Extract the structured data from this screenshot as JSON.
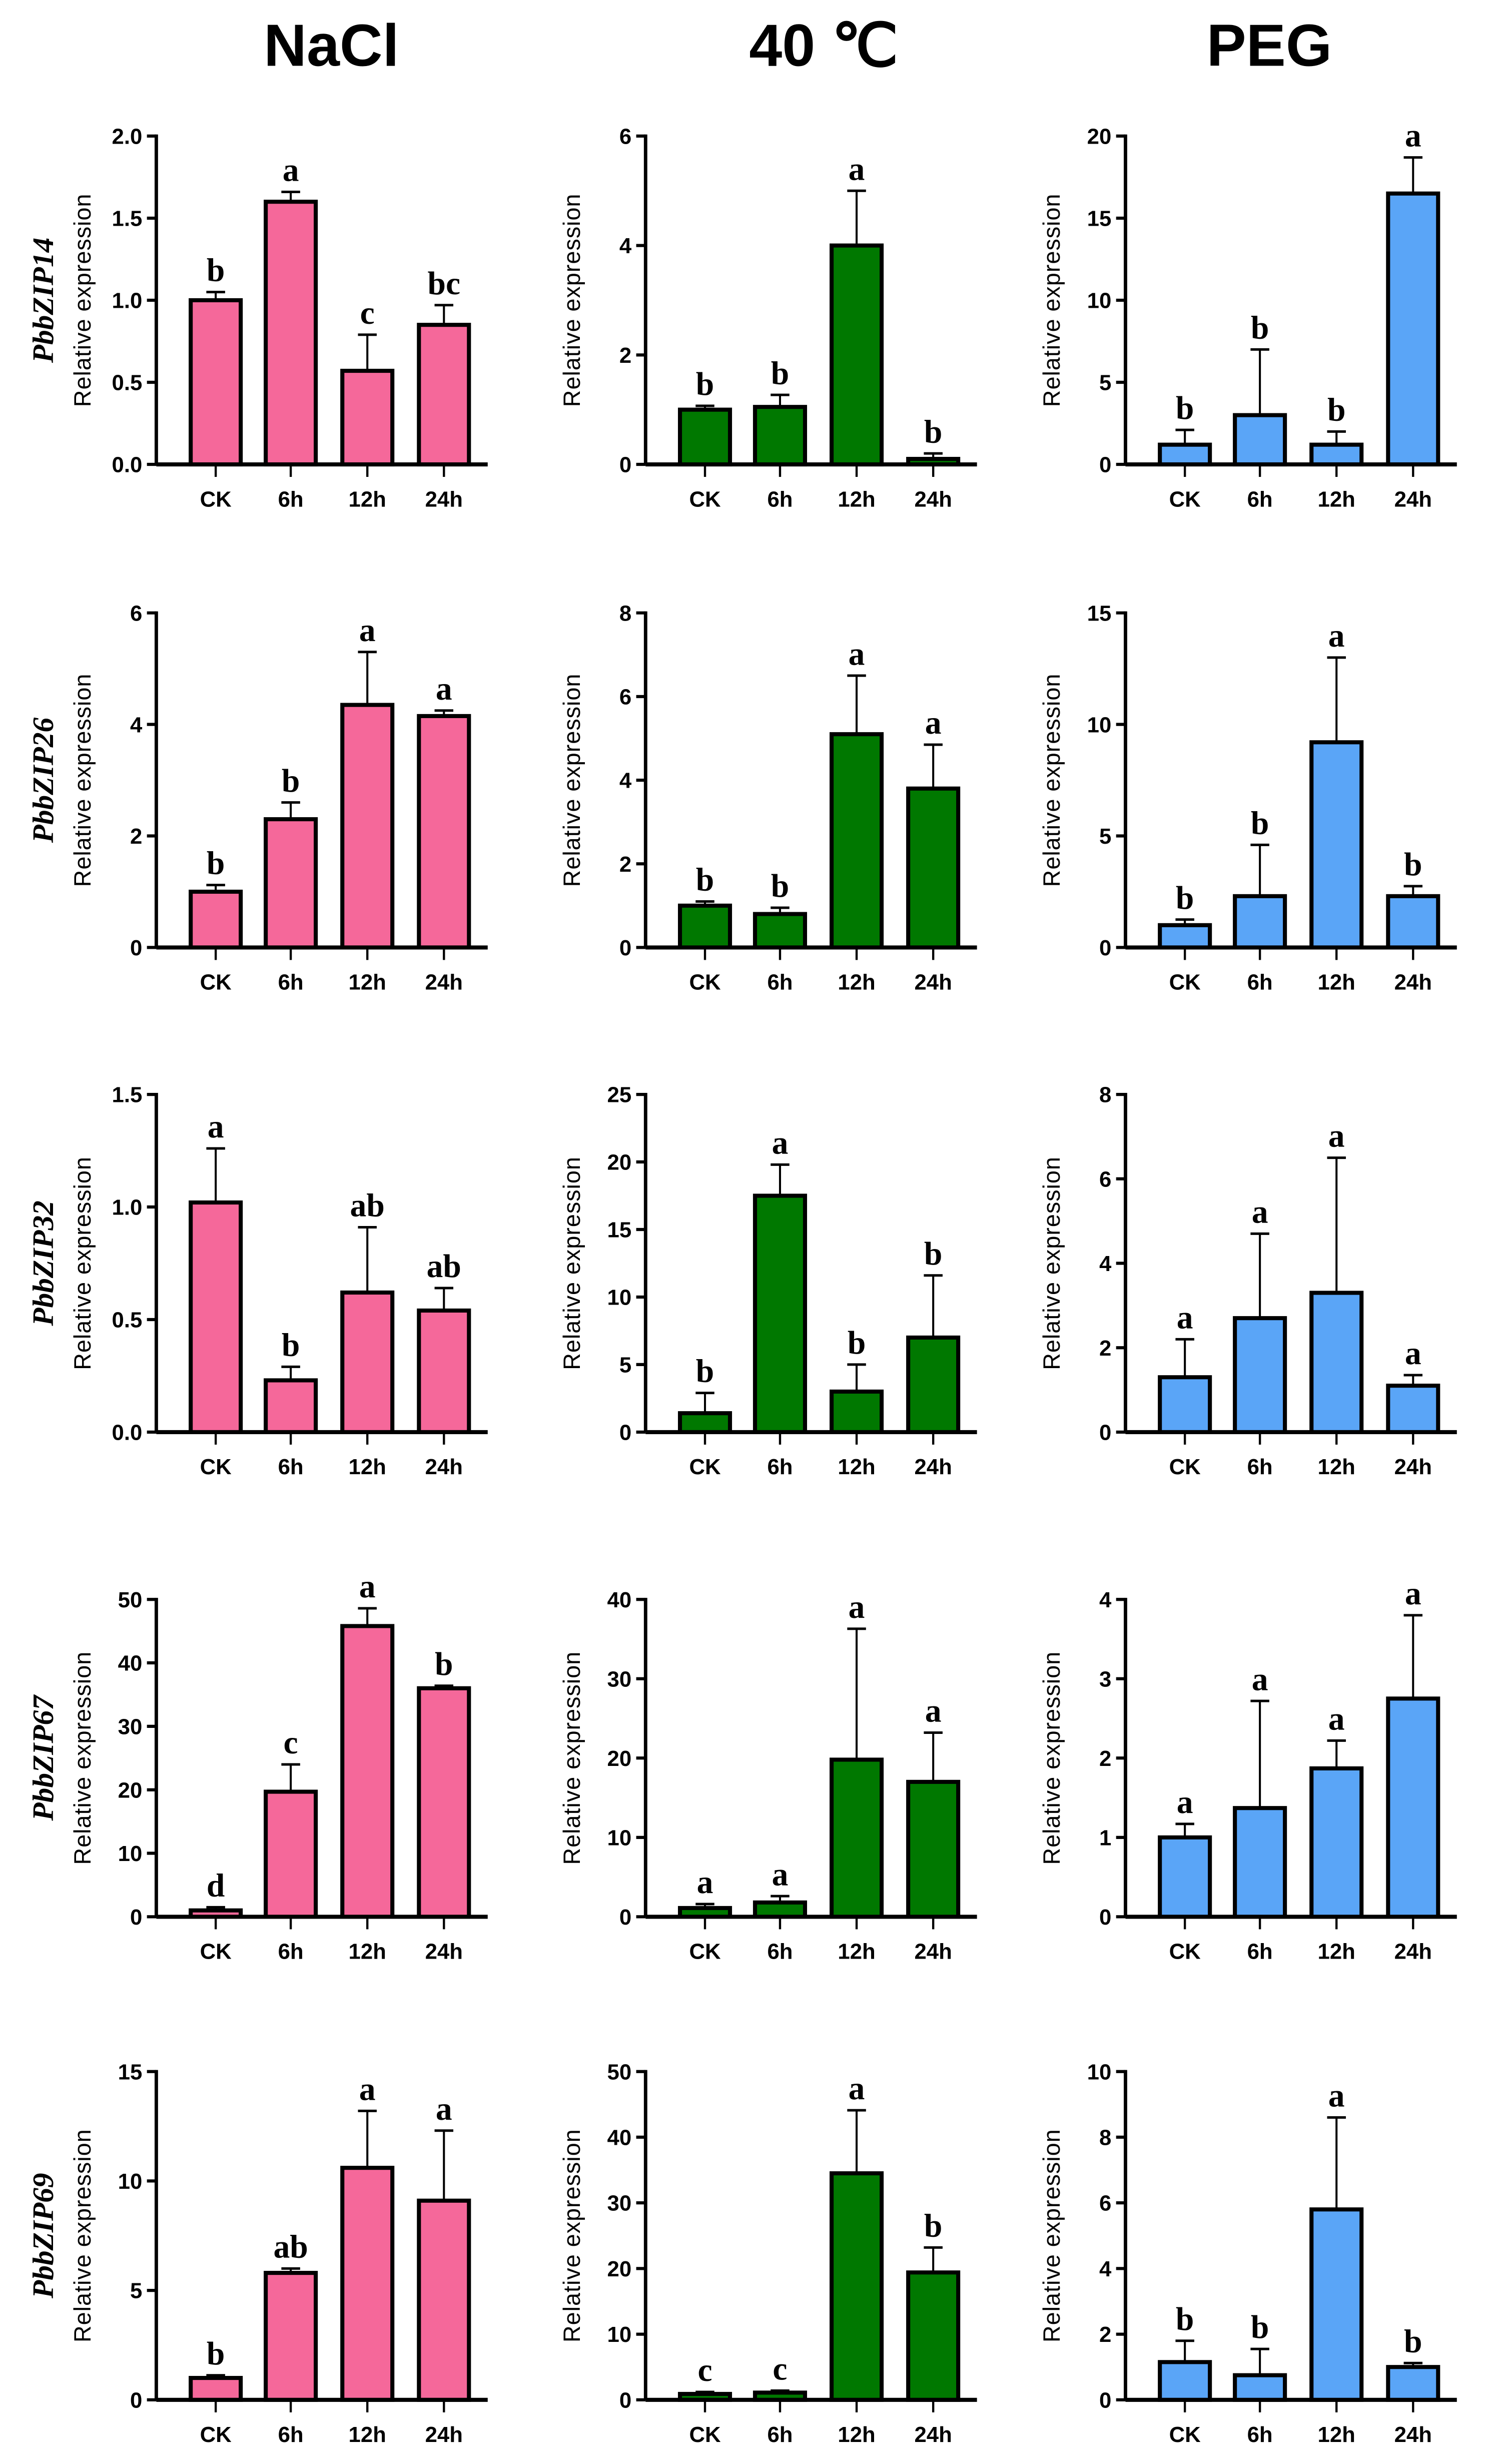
{
  "chart_data": {
    "type": "bar",
    "columns": [
      "NaCl",
      "40 ℃",
      "PEG"
    ],
    "rows": [
      "PbbZIP14",
      "PbbZIP26",
      "PbbZIP32",
      "PbbZIP67",
      "PbbZIP69"
    ],
    "categories": [
      "CK",
      "6h",
      "12h",
      "24h"
    ],
    "ylabel": "Relative expression",
    "colors": {
      "NaCl": "#f5689a",
      "40 ℃": "#007800",
      "PEG": "#5aa5f7"
    },
    "panels": [
      {
        "gene": "PbbZIP14",
        "condition": "NaCl",
        "ylim": [
          0,
          2
        ],
        "yticks": [
          "0.0",
          "0.5",
          "1.0",
          "1.5",
          "2.0"
        ],
        "values": [
          1.0,
          1.6,
          0.57,
          0.85
        ],
        "errors": [
          0.05,
          0.06,
          0.22,
          0.12
        ],
        "letters": [
          "b",
          "a",
          "c",
          "bc"
        ]
      },
      {
        "gene": "PbbZIP14",
        "condition": "40 ℃",
        "ylim": [
          0,
          6
        ],
        "yticks": [
          "0",
          "2",
          "4",
          "6"
        ],
        "values": [
          1.0,
          1.05,
          4.0,
          0.1
        ],
        "errors": [
          0.07,
          0.22,
          1.0,
          0.1
        ],
        "letters": [
          "b",
          "b",
          "a",
          "b"
        ]
      },
      {
        "gene": "PbbZIP14",
        "condition": "PEG",
        "ylim": [
          0,
          20
        ],
        "yticks": [
          "0",
          "5",
          "10",
          "15",
          "20"
        ],
        "values": [
          1.2,
          3.0,
          1.2,
          16.5
        ],
        "errors": [
          0.9,
          4.0,
          0.8,
          2.2
        ],
        "letters": [
          "b",
          "b",
          "b",
          "a"
        ]
      },
      {
        "gene": "PbbZIP26",
        "condition": "NaCl",
        "ylim": [
          0,
          6
        ],
        "yticks": [
          "0",
          "2",
          "4",
          "6"
        ],
        "values": [
          1.0,
          2.3,
          4.35,
          4.15
        ],
        "errors": [
          0.12,
          0.3,
          0.95,
          0.1
        ],
        "letters": [
          "b",
          "b",
          "a",
          "a"
        ]
      },
      {
        "gene": "PbbZIP26",
        "condition": "40 ℃",
        "ylim": [
          0,
          8
        ],
        "yticks": [
          "0",
          "2",
          "4",
          "6",
          "8"
        ],
        "values": [
          1.0,
          0.8,
          5.1,
          3.8
        ],
        "errors": [
          0.1,
          0.15,
          1.4,
          1.05
        ],
        "letters": [
          "b",
          "b",
          "a",
          "a"
        ]
      },
      {
        "gene": "PbbZIP26",
        "condition": "PEG",
        "ylim": [
          0,
          15
        ],
        "yticks": [
          "0",
          "5",
          "10",
          "15"
        ],
        "values": [
          1.0,
          2.3,
          9.2,
          2.3
        ],
        "errors": [
          0.25,
          2.3,
          3.8,
          0.45
        ],
        "letters": [
          "b",
          "b",
          "a",
          "b"
        ]
      },
      {
        "gene": "PbbZIP32",
        "condition": "NaCl",
        "ylim": [
          0,
          1.5
        ],
        "yticks": [
          "0.0",
          "0.5",
          "1.0",
          "1.5"
        ],
        "values": [
          1.02,
          0.23,
          0.62,
          0.54
        ],
        "errors": [
          0.24,
          0.06,
          0.29,
          0.1
        ],
        "letters": [
          "a",
          "b",
          "ab",
          "ab"
        ]
      },
      {
        "gene": "PbbZIP32",
        "condition": "40 ℃",
        "ylim": [
          0,
          25
        ],
        "yticks": [
          "0",
          "5",
          "10",
          "15",
          "20",
          "25"
        ],
        "values": [
          1.4,
          17.5,
          3.0,
          7.0
        ],
        "errors": [
          1.5,
          2.3,
          2.0,
          4.6
        ],
        "letters": [
          "b",
          "a",
          "b",
          "b"
        ]
      },
      {
        "gene": "PbbZIP32",
        "condition": "PEG",
        "ylim": [
          0,
          8
        ],
        "yticks": [
          "0",
          "2",
          "4",
          "6",
          "8"
        ],
        "values": [
          1.3,
          2.7,
          3.3,
          1.1
        ],
        "errors": [
          0.9,
          2.0,
          3.2,
          0.25
        ],
        "letters": [
          "a",
          "a",
          "a",
          "a"
        ]
      },
      {
        "gene": "PbbZIP67",
        "condition": "NaCl",
        "ylim": [
          0,
          50
        ],
        "yticks": [
          "0",
          "10",
          "20",
          "30",
          "40",
          "50"
        ],
        "values": [
          1.0,
          19.7,
          45.8,
          36.0
        ],
        "errors": [
          0.5,
          4.3,
          2.8,
          0.4
        ],
        "letters": [
          "d",
          "c",
          "a",
          "b"
        ]
      },
      {
        "gene": "PbbZIP67",
        "condition": "40 ℃",
        "ylim": [
          0,
          40
        ],
        "yticks": [
          "0",
          "10",
          "20",
          "30",
          "40"
        ],
        "values": [
          1.1,
          1.8,
          19.8,
          17.0
        ],
        "errors": [
          0.5,
          0.8,
          16.5,
          6.2
        ],
        "letters": [
          "a",
          "a",
          "a",
          "a"
        ]
      },
      {
        "gene": "PbbZIP67",
        "condition": "PEG",
        "ylim": [
          0,
          4
        ],
        "yticks": [
          "0",
          "1",
          "2",
          "3",
          "4"
        ],
        "values": [
          1.0,
          1.37,
          1.87,
          2.75
        ],
        "errors": [
          0.17,
          1.35,
          0.35,
          1.05
        ],
        "letters": [
          "a",
          "a",
          "a",
          "a"
        ]
      },
      {
        "gene": "PbbZIP69",
        "condition": "NaCl",
        "ylim": [
          0,
          15
        ],
        "yticks": [
          "0",
          "5",
          "10",
          "15"
        ],
        "values": [
          1.0,
          5.8,
          10.6,
          9.1
        ],
        "errors": [
          0.12,
          0.2,
          2.6,
          3.2
        ],
        "letters": [
          "b",
          "ab",
          "a",
          "a"
        ]
      },
      {
        "gene": "PbbZIP69",
        "condition": "40 ℃",
        "ylim": [
          0,
          50
        ],
        "yticks": [
          "0",
          "10",
          "20",
          "30",
          "40",
          "50"
        ],
        "values": [
          0.9,
          1.1,
          34.5,
          19.4
        ],
        "errors": [
          0.3,
          0.3,
          9.6,
          3.8
        ],
        "letters": [
          "c",
          "c",
          "a",
          "b"
        ]
      },
      {
        "gene": "PbbZIP69",
        "condition": "PEG",
        "ylim": [
          0,
          10
        ],
        "yticks": [
          "0",
          "2",
          "4",
          "6",
          "8",
          "10"
        ],
        "values": [
          1.15,
          0.75,
          5.8,
          1.0
        ],
        "errors": [
          0.65,
          0.8,
          2.8,
          0.12
        ],
        "letters": [
          "b",
          "b",
          "a",
          "b"
        ]
      }
    ]
  }
}
